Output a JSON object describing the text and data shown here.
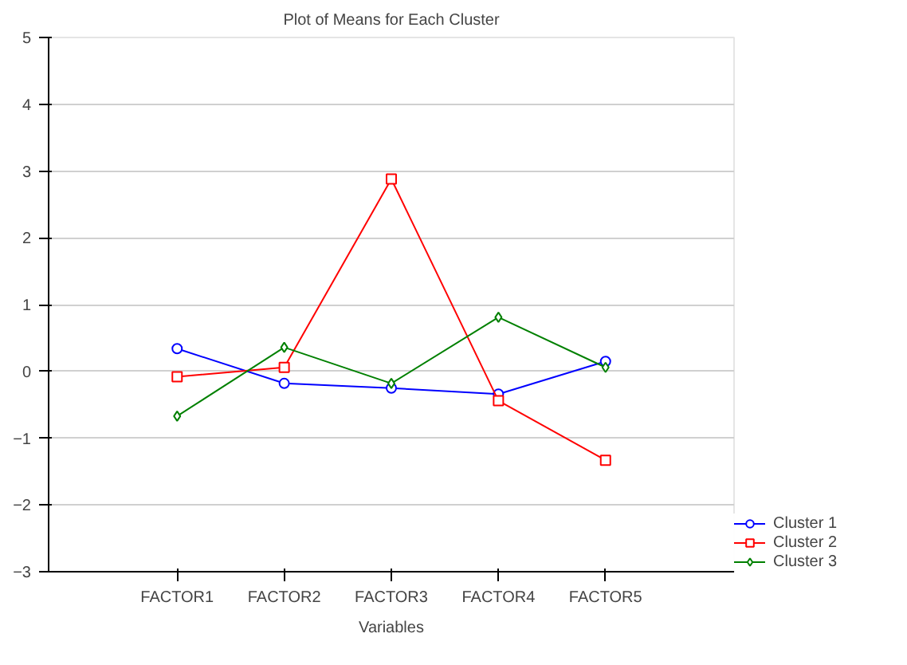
{
  "chart_data": {
    "type": "line",
    "title": "Plot of Means for Each Cluster",
    "xlabel": "Variables",
    "categories": [
      "FACTOR1",
      "FACTOR2",
      "FACTOR3",
      "FACTOR4",
      "FACTOR5"
    ],
    "series": [
      {
        "name": "Cluster 1",
        "color": "#0000ff",
        "values": [
          0.34,
          -0.18,
          -0.25,
          -0.34,
          0.15
        ],
        "marker": "circle"
      },
      {
        "name": "Cluster 2",
        "color": "#ff0000",
        "values": [
          -0.08,
          0.06,
          2.88,
          -0.44,
          -1.33
        ],
        "marker": "square"
      },
      {
        "name": "Cluster 3",
        "color": "#008000",
        "values": [
          -0.67,
          0.36,
          -0.18,
          0.81,
          0.06
        ],
        "marker": "diamond"
      }
    ],
    "ylim": [
      -3,
      5
    ],
    "yticks": [
      -3,
      -2,
      -1,
      0,
      1,
      2,
      3,
      4,
      5
    ],
    "grid": "y",
    "legend": "bottom right",
    "line_style": "solid"
  }
}
